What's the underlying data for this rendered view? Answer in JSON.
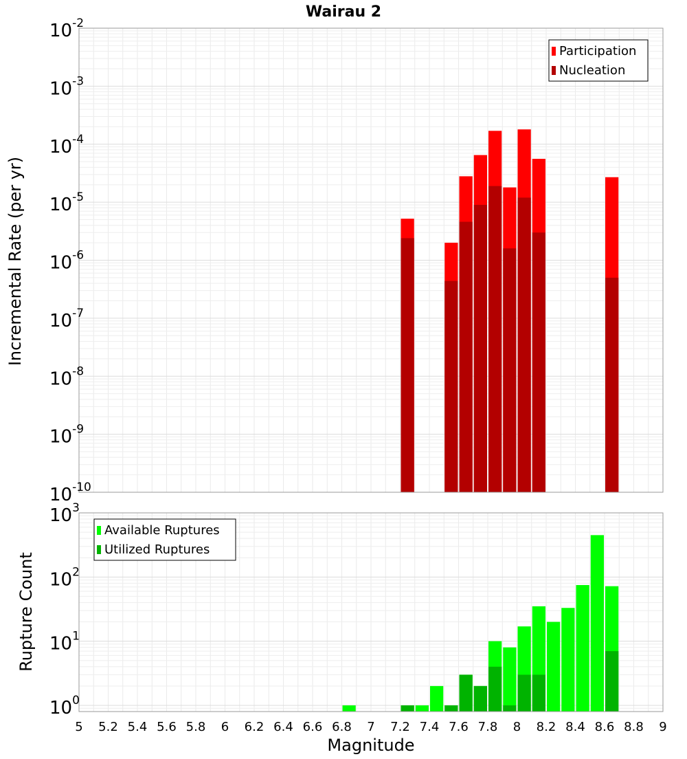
{
  "chart_data": [
    {
      "type": "bar",
      "title": "Wairau 2",
      "xlabel": "",
      "ylabel": "Incremental Rate (per yr)",
      "yscale": "log",
      "ylim": [
        1e-10,
        0.01
      ],
      "xlim": [
        5,
        9
      ],
      "grid": true,
      "legend_placement": "top-right",
      "bin_width": 0.1,
      "y_tick_labels": [
        {
          "base": "10",
          "exp": "-10"
        },
        {
          "base": "10",
          "exp": "-9"
        },
        {
          "base": "10",
          "exp": "-8"
        },
        {
          "base": "10",
          "exp": "-7"
        },
        {
          "base": "10",
          "exp": "-6"
        },
        {
          "base": "10",
          "exp": "-5"
        },
        {
          "base": "10",
          "exp": "-4"
        },
        {
          "base": "10",
          "exp": "-3"
        },
        {
          "base": "10",
          "exp": "-2"
        }
      ],
      "series": [
        {
          "name": "Participation",
          "color": "#ff0000",
          "x": [
            7.25,
            7.55,
            7.65,
            7.75,
            7.85,
            7.95,
            8.05,
            8.15,
            8.65
          ],
          "values": [
            5.2e-06,
            2e-06,
            2.8e-05,
            6.5e-05,
            0.00017,
            1.8e-05,
            0.00018,
            5.6e-05,
            2.7e-05
          ]
        },
        {
          "name": "Nucleation",
          "color": "#b30000",
          "x": [
            7.25,
            7.55,
            7.65,
            7.75,
            7.85,
            7.95,
            8.05,
            8.15,
            8.65
          ],
          "values": [
            2.4e-06,
            4.4e-07,
            4.6e-06,
            9e-06,
            1.9e-05,
            1.6e-06,
            1.2e-05,
            3e-06,
            5e-07
          ]
        }
      ]
    },
    {
      "type": "bar",
      "title": "",
      "xlabel": "Magnitude",
      "ylabel": "Rupture Count",
      "yscale": "log",
      "ylim": [
        0.8,
        1000
      ],
      "xlim": [
        5,
        9
      ],
      "grid": true,
      "legend_placement": "top-left",
      "bin_width": 0.1,
      "x_tick_labels": [
        "5",
        "5.2",
        "5.4",
        "5.6",
        "5.8",
        "6",
        "6.2",
        "6.4",
        "6.6",
        "6.8",
        "7",
        "7.2",
        "7.4",
        "7.6",
        "7.8",
        "8",
        "8.2",
        "8.4",
        "8.6",
        "8.8",
        "9"
      ],
      "y_tick_labels": [
        {
          "base": "10",
          "exp": "0"
        },
        {
          "base": "10",
          "exp": "1"
        },
        {
          "base": "10",
          "exp": "2"
        },
        {
          "base": "10",
          "exp": "3"
        }
      ],
      "series": [
        {
          "name": "Available Ruptures",
          "color": "#00ff00",
          "x": [
            6.85,
            7.25,
            7.35,
            7.45,
            7.55,
            7.65,
            7.75,
            7.85,
            7.95,
            8.05,
            8.15,
            8.25,
            8.35,
            8.45,
            8.55,
            8.65
          ],
          "values": [
            1,
            1,
            1,
            2,
            1,
            3,
            2,
            10,
            8,
            17,
            35,
            20,
            33,
            75,
            450,
            72
          ]
        },
        {
          "name": "Utilized Ruptures",
          "color": "#00b300",
          "x": [
            7.25,
            7.55,
            7.65,
            7.75,
            7.85,
            7.95,
            8.05,
            8.15,
            8.65
          ],
          "values": [
            1,
            1,
            3,
            2,
            4,
            1,
            3,
            3,
            7
          ]
        }
      ]
    }
  ]
}
